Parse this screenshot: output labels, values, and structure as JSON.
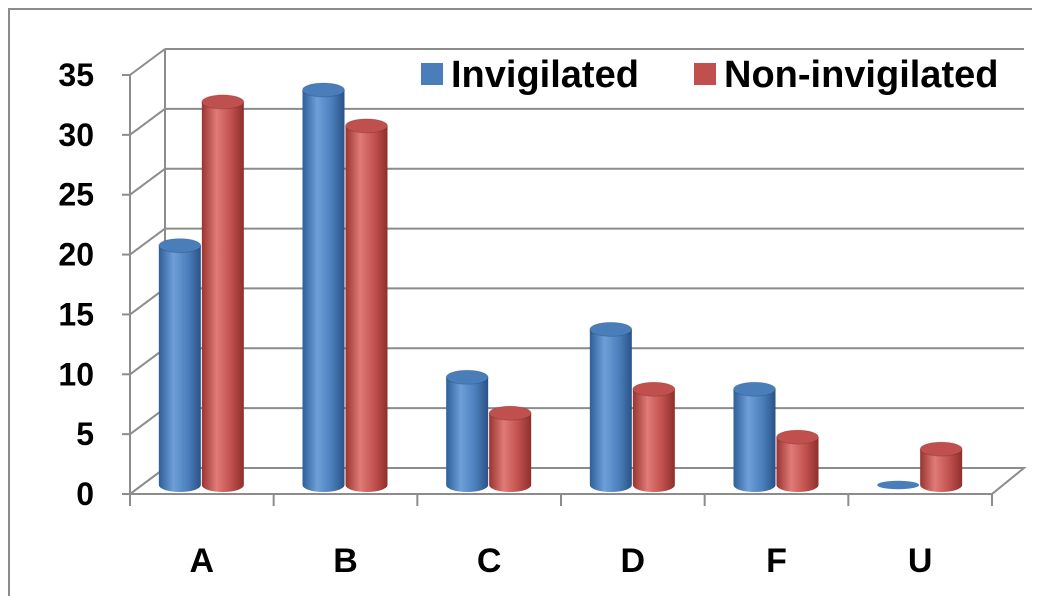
{
  "chart_data": {
    "type": "bar",
    "style": "3d-cylinder",
    "categories": [
      "A",
      "B",
      "C",
      "D",
      "F",
      "U"
    ],
    "series": [
      {
        "name": "Invigilated",
        "values": [
          20,
          33,
          9,
          13,
          8,
          0
        ],
        "color": "#4a7ebb"
      },
      {
        "name": "Non-invigilated",
        "values": [
          32,
          30,
          6,
          8,
          4,
          3
        ],
        "color": "#c0504d"
      }
    ],
    "ylim": [
      0,
      35
    ],
    "yticks": [
      "0",
      "5",
      "10",
      "15",
      "20",
      "25",
      "30",
      "35"
    ],
    "grid": true,
    "legend_position": "top-right"
  }
}
